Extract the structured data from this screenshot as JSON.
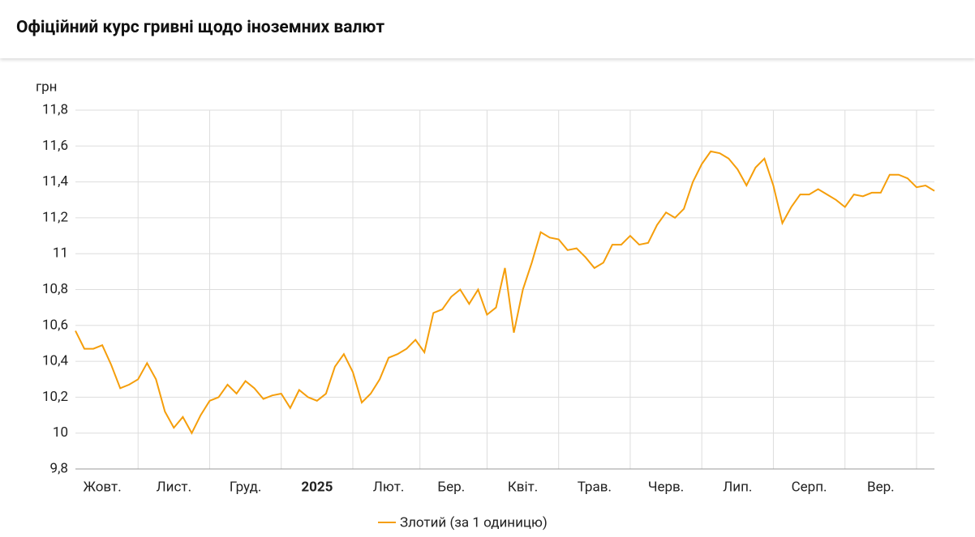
{
  "header": {
    "title": "Офіційний курс гривні щодо іноземних валют"
  },
  "chart_data": {
    "type": "line",
    "y_axis_label": "грн",
    "categories": [
      null,
      null,
      null,
      "Жовт.",
      null,
      null,
      null,
      null,
      null,
      null,
      null,
      "Лист.",
      null,
      null,
      null,
      null,
      null,
      null,
      null,
      "Груд.",
      null,
      null,
      null,
      null,
      null,
      null,
      null,
      "2025",
      null,
      null,
      null,
      null,
      null,
      null,
      null,
      "Лют.",
      null,
      null,
      null,
      null,
      null,
      null,
      "Бер.",
      null,
      null,
      null,
      null,
      null,
      null,
      null,
      "Квіт.",
      null,
      null,
      null,
      null,
      null,
      null,
      null,
      "Трав.",
      null,
      null,
      null,
      null,
      null,
      null,
      null,
      "Черв.",
      null,
      null,
      null,
      null,
      null,
      null,
      null,
      "Лип.",
      null,
      null,
      null,
      null,
      null,
      null,
      null,
      "Серп.",
      null,
      null,
      null,
      null,
      null,
      null,
      null,
      "Вер.",
      null,
      null,
      null,
      null,
      null,
      null
    ],
    "series": [
      {
        "name": "Злотий (за 1 одиницю)",
        "color": "#f59e0b",
        "values": [
          10.57,
          10.47,
          10.47,
          10.49,
          10.38,
          10.25,
          10.27,
          10.3,
          10.39,
          10.3,
          10.12,
          10.03,
          10.09,
          10.0,
          10.1,
          10.18,
          10.2,
          10.27,
          10.22,
          10.29,
          10.25,
          10.19,
          10.21,
          10.22,
          10.14,
          10.24,
          10.2,
          10.18,
          10.22,
          10.37,
          10.44,
          10.34,
          10.17,
          10.22,
          10.3,
          10.42,
          10.44,
          10.47,
          10.52,
          10.45,
          10.67,
          10.69,
          10.76,
          10.8,
          10.72,
          10.8,
          10.66,
          10.7,
          10.92,
          10.56,
          10.8,
          10.95,
          11.12,
          11.09,
          11.08,
          11.02,
          11.03,
          10.98,
          10.92,
          10.95,
          11.05,
          11.05,
          11.1,
          11.05,
          11.06,
          11.16,
          11.23,
          11.2,
          11.25,
          11.4,
          11.5,
          11.57,
          11.56,
          11.53,
          11.47,
          11.38,
          11.48,
          11.53,
          11.38,
          11.17,
          11.26,
          11.33,
          11.33,
          11.36,
          11.33,
          11.3,
          11.26,
          11.33,
          11.32,
          11.34,
          11.34,
          11.44,
          11.44,
          11.42,
          11.37,
          11.38,
          11.35
        ]
      }
    ],
    "ylim": [
      9.8,
      11.8
    ],
    "yticks": [
      {
        "value": 9.8,
        "label": "9,8"
      },
      10,
      {
        "value": 10.2,
        "label": "10,2"
      },
      {
        "value": 10.4,
        "label": "10,4"
      },
      {
        "value": 10.6,
        "label": "10,6"
      },
      {
        "value": 10.8,
        "label": "10,8"
      },
      11,
      {
        "value": 11.2,
        "label": "11,2"
      },
      {
        "value": 11.4,
        "label": "11,4"
      },
      {
        "value": 11.6,
        "label": "11,6"
      },
      {
        "value": 11.8,
        "label": "11,8"
      }
    ],
    "grid": true,
    "legend": "bottom"
  }
}
